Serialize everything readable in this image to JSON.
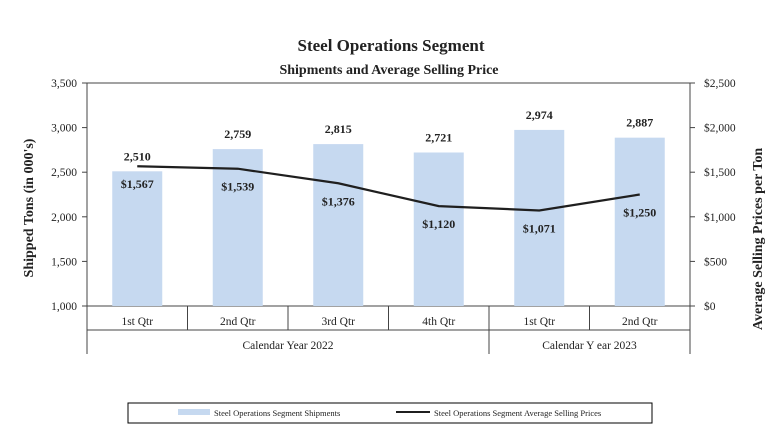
{
  "chart_data": {
    "type": "bar+line",
    "title": "Steel Operations Segment",
    "subtitle": "Shipments and Average Selling Price",
    "categories": [
      "1st Qtr",
      "2nd Qtr",
      "3rd Qtr",
      "4th Qtr",
      "1st Qtr",
      "2nd Qtr"
    ],
    "groups": [
      {
        "label": "Calendar Year 2022",
        "categories": 4
      },
      {
        "label": "Calendar Y ear 2023",
        "categories": 2
      }
    ],
    "series": [
      {
        "name": "Steel Operations Segment Shipments",
        "type": "bar",
        "axis": "left",
        "color": "#c6d9f0",
        "values": [
          2510,
          2759,
          2815,
          2721,
          2974,
          2887
        ],
        "labels": [
          "2,510",
          "2,759",
          "2,815",
          "2,721",
          "2,974",
          "2,887"
        ]
      },
      {
        "name": "Steel Operations Segment Average Selling Prices",
        "type": "line",
        "axis": "right",
        "color": "#1f1f1f",
        "values": [
          1567,
          1539,
          1376,
          1120,
          1071,
          1250
        ],
        "labels": [
          "$1,567",
          "$1,539",
          "$1,376",
          "$1,120",
          "$1,071",
          "$1,250"
        ]
      }
    ],
    "ylabel_left": "Shipped Tons (in 000's)",
    "ylabel_right": "Average Selling Prices per Ton",
    "ylim_left": [
      1000,
      3500
    ],
    "ylim_right": [
      0,
      2500
    ],
    "yticks_left": [
      "1,000",
      "1,500",
      "2,000",
      "2,500",
      "3,000",
      "3,500"
    ],
    "yticks_right": [
      "$0",
      "$500",
      "$1,000",
      "$1,500",
      "$2,000",
      "$2,500"
    ],
    "grid": false,
    "legend_position": "bottom"
  }
}
